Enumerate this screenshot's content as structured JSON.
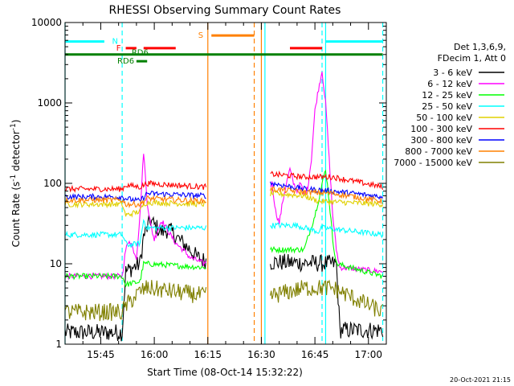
{
  "chart_data": {
    "type": "line",
    "title": "RHESSI Observing Summary Count Rates",
    "xlabel": "Start Time (08-Oct-14 15:32:22)",
    "ylabel": "Count Rate (s-1 detector-1)",
    "ylabel_parts": [
      "Count Rate (s",
      "-1",
      " detector",
      "-1",
      ")"
    ],
    "y_scale": "log",
    "ylim": [
      1,
      10000
    ],
    "xlim_minutes": [
      35,
      125
    ],
    "y_ticks": [
      {
        "value": 1,
        "label": "1"
      },
      {
        "value": 10,
        "label": "10"
      },
      {
        "value": 100,
        "label": "100"
      },
      {
        "value": 1000,
        "label": "1000"
      },
      {
        "value": 10000,
        "label": "10000"
      }
    ],
    "x_ticks": [
      {
        "minute": 45,
        "label": "15:45"
      },
      {
        "minute": 60,
        "label": "16:00"
      },
      {
        "minute": 75,
        "label": "16:15"
      },
      {
        "minute": 90,
        "label": "16:30"
      },
      {
        "minute": 105,
        "label": "16:45"
      },
      {
        "minute": 120,
        "label": "17:00"
      }
    ],
    "legend": {
      "placement": "right",
      "header": [
        "Det 1,3,6,9,",
        "FDecim 1, Att 0"
      ]
    },
    "series": [
      {
        "name": "3 - 6 keV",
        "color": "#000000",
        "points": [
          [
            35,
            1.4
          ],
          [
            44,
            1.4
          ],
          [
            51,
            1.4
          ],
          [
            52,
            8
          ],
          [
            56,
            10
          ],
          [
            57,
            22
          ],
          [
            59,
            35
          ],
          [
            60,
            30
          ],
          [
            62,
            25
          ],
          [
            64,
            27
          ],
          [
            66,
            22
          ],
          [
            68,
            18
          ],
          [
            70,
            15
          ],
          [
            72,
            12
          ],
          [
            74,
            11
          ],
          [
            111,
            10
          ],
          [
            112,
            1.5
          ],
          [
            124,
            1.5
          ]
        ]
      },
      {
        "name": "6 - 12 keV",
        "color": "#ff00ff",
        "points": [
          [
            35,
            7
          ],
          [
            51,
            7
          ],
          [
            52,
            15
          ],
          [
            53,
            20
          ],
          [
            55,
            12
          ],
          [
            56,
            40
          ],
          [
            57,
            250
          ],
          [
            58,
            60
          ],
          [
            59,
            30
          ],
          [
            60,
            20
          ],
          [
            62,
            35
          ],
          [
            64,
            25
          ],
          [
            66,
            18
          ],
          [
            68,
            15
          ],
          [
            70,
            12
          ],
          [
            72,
            11
          ],
          [
            74,
            10
          ],
          [
            93,
            100
          ],
          [
            94,
            45
          ],
          [
            95,
            32
          ],
          [
            96,
            60
          ],
          [
            97,
            100
          ],
          [
            98,
            150
          ],
          [
            99,
            100
          ],
          [
            100,
            80
          ],
          [
            101,
            100
          ],
          [
            102,
            70
          ],
          [
            103,
            90
          ],
          [
            104,
            200
          ],
          [
            105,
            800
          ],
          [
            106,
            1500
          ],
          [
            107,
            2500
          ],
          [
            108,
            1000
          ],
          [
            109,
            200
          ],
          [
            110,
            40
          ],
          [
            111,
            15
          ],
          [
            112,
            9
          ],
          [
            124,
            8
          ]
        ]
      },
      {
        "name": "12 - 25 keV",
        "color": "#00ff00",
        "points": [
          [
            35,
            7
          ],
          [
            51,
            7
          ],
          [
            52,
            5.5
          ],
          [
            56,
            6
          ],
          [
            57,
            10
          ],
          [
            58,
            10
          ],
          [
            74,
            9
          ],
          [
            93,
            15
          ],
          [
            102,
            15
          ],
          [
            105,
            40
          ],
          [
            108,
            150
          ],
          [
            109,
            60
          ],
          [
            110,
            20
          ],
          [
            111,
            10
          ],
          [
            124,
            7
          ]
        ]
      },
      {
        "name": "25 - 50 keV",
        "color": "#00ffff",
        "points": [
          [
            35,
            23
          ],
          [
            51,
            23
          ],
          [
            52,
            18
          ],
          [
            53,
            17
          ],
          [
            56,
            18
          ],
          [
            57,
            35
          ],
          [
            58,
            28
          ],
          [
            74,
            28
          ],
          [
            93,
            30
          ],
          [
            100,
            30
          ],
          [
            106,
            25
          ],
          [
            107,
            28
          ],
          [
            124,
            23
          ]
        ]
      },
      {
        "name": "50 - 100 keV",
        "color": "#e0d000",
        "points": [
          [
            35,
            55
          ],
          [
            51,
            55
          ],
          [
            52,
            40
          ],
          [
            56,
            45
          ],
          [
            57,
            55
          ],
          [
            58,
            58
          ],
          [
            74,
            55
          ],
          [
            93,
            75
          ],
          [
            102,
            70
          ],
          [
            106,
            60
          ],
          [
            124,
            55
          ]
        ]
      },
      {
        "name": "100 - 300 keV",
        "color": "#ff0000",
        "points": [
          [
            35,
            85
          ],
          [
            51,
            85
          ],
          [
            52,
            95
          ],
          [
            56,
            90
          ],
          [
            58,
            100
          ],
          [
            74,
            90
          ],
          [
            93,
            130
          ],
          [
            102,
            120
          ],
          [
            110,
            120
          ],
          [
            124,
            90
          ]
        ]
      },
      {
        "name": "300 - 800 keV",
        "color": "#0000ff",
        "points": [
          [
            35,
            68
          ],
          [
            51,
            68
          ],
          [
            52,
            65
          ],
          [
            56,
            60
          ],
          [
            58,
            75
          ],
          [
            74,
            70
          ],
          [
            93,
            100
          ],
          [
            102,
            85
          ],
          [
            110,
            80
          ],
          [
            124,
            68
          ]
        ]
      },
      {
        "name": "800 - 7000 keV",
        "color": "#ff8000",
        "points": [
          [
            35,
            62
          ],
          [
            51,
            62
          ],
          [
            52,
            55
          ],
          [
            56,
            55
          ],
          [
            58,
            65
          ],
          [
            74,
            60
          ],
          [
            93,
            85
          ],
          [
            102,
            78
          ],
          [
            110,
            75
          ],
          [
            124,
            60
          ]
        ]
      },
      {
        "name": "7000 - 15000 keV",
        "color": "#808000",
        "points": [
          [
            35,
            2.5
          ],
          [
            51,
            2.5
          ],
          [
            52,
            3
          ],
          [
            56,
            4.5
          ],
          [
            58,
            5
          ],
          [
            74,
            4
          ],
          [
            93,
            4
          ],
          [
            102,
            5
          ],
          [
            110,
            5
          ],
          [
            124,
            2.5
          ]
        ]
      }
    ],
    "annotations": {
      "flag_labels": [
        {
          "label": "N",
          "color": "#00ffff",
          "x": 49,
          "y": 5800
        },
        {
          "label": "F",
          "color": "#ff0000",
          "x": 50,
          "y": 4800
        },
        {
          "label": "RD6",
          "color": "#008000",
          "x": 52,
          "y": 3300
        },
        {
          "label": "RD6",
          "color": "#008000",
          "x": 56,
          "y": 4200
        },
        {
          "label": "S",
          "color": "#ff8000",
          "x": 73,
          "y": 6900
        }
      ],
      "flag_bars": [
        {
          "color": "#00ffff",
          "x0": 35,
          "x1": 46,
          "y": 5800
        },
        {
          "color": "#00ffff",
          "x0": 108,
          "x1": 124,
          "y": 5800
        },
        {
          "color": "#ff0000",
          "x0": 52,
          "x1": 55,
          "y": 4800
        },
        {
          "color": "#ff0000",
          "x0": 57,
          "x1": 66,
          "y": 4800
        },
        {
          "color": "#ff0000",
          "x0": 98,
          "x1": 107,
          "y": 4800
        },
        {
          "color": "#008000",
          "x0": 35,
          "x1": 124,
          "y": 4000
        },
        {
          "color": "#008000",
          "x0": 55,
          "x1": 58,
          "y": 3300
        },
        {
          "color": "#ff8000",
          "x0": 76,
          "x1": 88,
          "y": 6900
        }
      ],
      "vertical_lines": [
        {
          "x": 35,
          "color": "#00ffff",
          "dashed": false
        },
        {
          "x": 51,
          "color": "#00ffff",
          "dashed": true
        },
        {
          "x": 75,
          "color": "#ff8000",
          "dashed": false
        },
        {
          "x": 88,
          "color": "#ff8000",
          "dashed": true
        },
        {
          "x": 90,
          "color": "#ff8000",
          "dashed": false
        },
        {
          "x": 91,
          "color": "#00ffff",
          "dashed": false
        },
        {
          "x": 107,
          "color": "#00ffff",
          "dashed": true
        },
        {
          "x": 108,
          "color": "#00ffff",
          "dashed": false
        },
        {
          "x": 124,
          "color": "#00ffff",
          "dashed": true
        }
      ]
    }
  },
  "footer": {
    "timestamp": "20-Oct-2021 21:15"
  }
}
